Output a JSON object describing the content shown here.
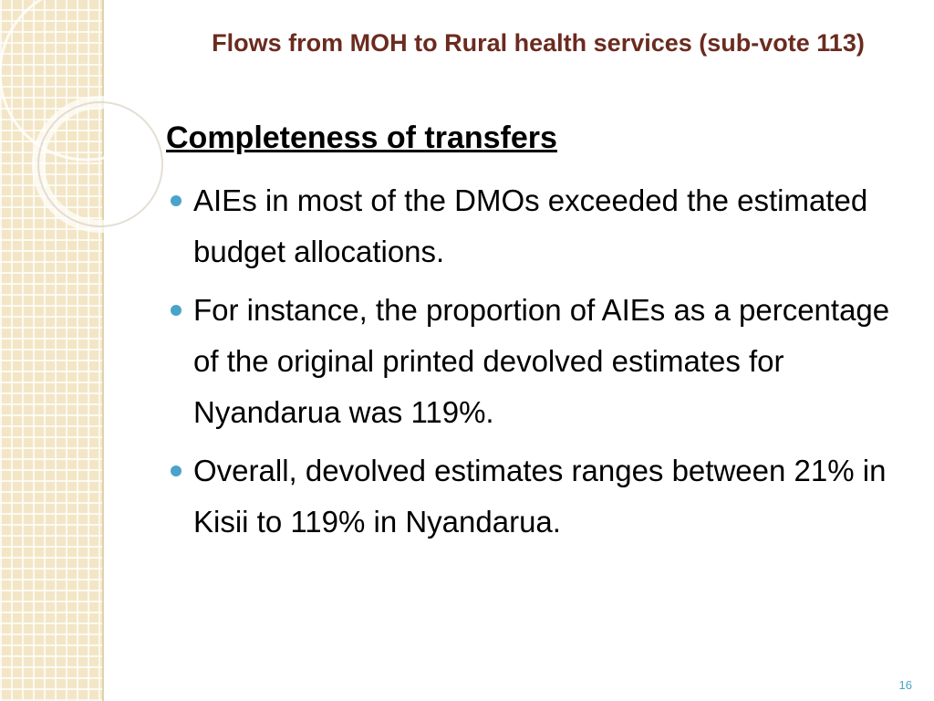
{
  "header": {
    "title": "Flows from MOH to Rural health services (sub-vote 113)"
  },
  "heading": "Completeness of transfers",
  "bullets": [
    "AIEs in most of the DMOs exceeded the estimated budget allocations.",
    "For instance, the proportion of AIEs as a percentage of the original printed devolved estimates for Nyandarua was 119%.",
    "Overall, devolved estimates ranges between 21% in Kisii to 119% in Nyandarua."
  ],
  "page_number": "16"
}
